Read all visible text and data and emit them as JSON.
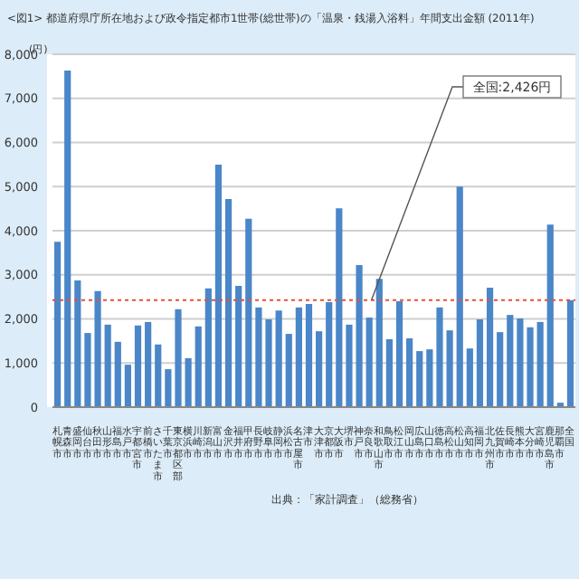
{
  "chart_data": {
    "type": "bar",
    "title": "<図1> 都道府県庁所在地および政令指定都市1世帯(総世帯)の「温泉・銭湯入浴料」年間支出金額 (2011年)",
    "ylabel": "(円)",
    "categories": [
      "札幌市",
      "青森市",
      "盛岡市",
      "仙台市",
      "秋田市",
      "山形市",
      "福島市",
      "水戸市",
      "宇都宮市",
      "前橋市",
      "さいたま市",
      "千葉市",
      "東京都区部",
      "横浜市",
      "川崎市",
      "新潟市",
      "富山市",
      "金沢市",
      "福井市",
      "甲府市",
      "長野市",
      "岐阜市",
      "静岡市",
      "浜松市",
      "名古屋市",
      "津市",
      "大津市",
      "京都市",
      "大阪市",
      "堺市",
      "神戸市",
      "奈良市",
      "和歌山市",
      "鳥取市",
      "松江市",
      "岡山市",
      "広島市",
      "山口市",
      "徳島市",
      "高松市",
      "松山市",
      "高知市",
      "福岡市",
      "北九州市",
      "佐賀市",
      "長崎市",
      "熊本市",
      "大分市",
      "宮崎市",
      "鹿児島市",
      "那覇市",
      "全国"
    ],
    "values": [
      3750,
      7630,
      2870,
      1680,
      2630,
      1870,
      1480,
      960,
      1850,
      1930,
      1420,
      860,
      2220,
      1110,
      1830,
      2690,
      5500,
      4720,
      2750,
      4270,
      2260,
      1990,
      2190,
      1660,
      2260,
      2340,
      1720,
      2380,
      4510,
      1870,
      3220,
      2030,
      2910,
      1540,
      2400,
      1560,
      1270,
      1310,
      2260,
      1740,
      5000,
      1330,
      1990,
      2710,
      1700,
      2090,
      2010,
      1810,
      1930,
      4140,
      100,
      2426
    ],
    "color": "#4a86c8",
    "ylim": [
      0,
      8000
    ],
    "yticks": [
      {
        "value": 0,
        "label": "0"
      },
      {
        "value": 1000,
        "label": "1,000"
      },
      {
        "value": 2000,
        "label": "2,000"
      },
      {
        "value": 3000,
        "label": "3,000"
      },
      {
        "value": 4000,
        "label": "4,000"
      },
      {
        "value": 5000,
        "label": "5,000"
      },
      {
        "value": 6000,
        "label": "6,000"
      },
      {
        "value": 7000,
        "label": "7,000"
      },
      {
        "value": 8000,
        "label": "8,000"
      }
    ],
    "grid": "y",
    "ref_lines": [
      {
        "axis": "y",
        "value": 2426,
        "label": "全国:2,426円",
        "color": "#e8503a",
        "line_style": "dotted"
      }
    ],
    "annotations": [
      "出典：「家計調査」（総務省）"
    ]
  }
}
